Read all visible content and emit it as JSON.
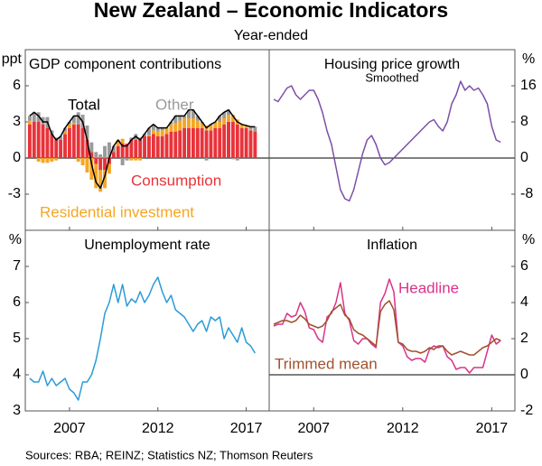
{
  "title": "New Zealand – Economic Indicators",
  "subtitle": "Year-ended",
  "source": "Sources: RBA; REINZ; Statistics NZ; Thomson Reuters",
  "chart_data": [
    {
      "type": "bar",
      "stacked": true,
      "title": "GDP component contributions",
      "ylabel": "ppt",
      "yaxis_side": "left",
      "zero_line": true,
      "xlim": [
        2004.5,
        2018.3
      ],
      "xticks": [
        2007,
        2012,
        2017
      ],
      "ylim": [
        -6,
        9
      ],
      "yticks": [
        -3,
        0,
        3,
        6
      ],
      "x": [
        2004.75,
        2005,
        2005.25,
        2005.5,
        2005.75,
        2006,
        2006.25,
        2006.5,
        2006.75,
        2007,
        2007.25,
        2007.5,
        2007.75,
        2008,
        2008.25,
        2008.5,
        2008.75,
        2009,
        2009.25,
        2009.5,
        2009.75,
        2010,
        2010.25,
        2010.5,
        2010.75,
        2011,
        2011.25,
        2011.5,
        2011.75,
        2012,
        2012.25,
        2012.5,
        2012.75,
        2013,
        2013.25,
        2013.5,
        2013.75,
        2014,
        2014.25,
        2014.5,
        2014.75,
        2015,
        2015.25,
        2015.5,
        2015.75,
        2016,
        2016.25,
        2016.5,
        2016.75,
        2017,
        2017.25,
        2017.5
      ],
      "series": [
        {
          "name": "Consumption",
          "color": "#e8333a",
          "values": [
            2.8,
            3.0,
            3.0,
            2.8,
            2.5,
            2.0,
            1.5,
            1.5,
            2.0,
            2.5,
            2.8,
            2.8,
            2.5,
            1.5,
            0.5,
            -0.5,
            -1.0,
            -1.0,
            -0.5,
            0.5,
            1.0,
            1.2,
            1.2,
            1.5,
            1.5,
            1.5,
            1.8,
            1.8,
            2.0,
            1.8,
            1.8,
            2.0,
            2.2,
            2.2,
            2.3,
            2.5,
            2.5,
            2.5,
            2.5,
            2.5,
            2.3,
            2.3,
            2.5,
            2.5,
            2.8,
            3.0,
            3.0,
            2.8,
            2.5,
            2.5,
            2.3,
            2.2
          ]
        },
        {
          "name": "Residential investment",
          "color": "#f5a623",
          "values": [
            0.3,
            0.0,
            -0.3,
            -0.4,
            -0.4,
            -0.3,
            -0.2,
            0.0,
            0.2,
            0.3,
            0.1,
            -0.3,
            -0.6,
            -1.2,
            -1.8,
            -2.0,
            -1.8,
            -1.5,
            -0.8,
            0.0,
            0.5,
            0.4,
            0.0,
            -0.2,
            -0.2,
            -0.2,
            0.0,
            0.1,
            0.3,
            0.4,
            0.5,
            0.5,
            0.6,
            0.7,
            0.8,
            0.8,
            0.8,
            0.8,
            0.6,
            0.4,
            0.4,
            0.4,
            0.5,
            0.5,
            0.5,
            0.6,
            0.6,
            0.4,
            0.3,
            0.2,
            0.1,
            0.0
          ]
        },
        {
          "name": "Other",
          "color": "#9a9a9a",
          "values": [
            0.4,
            0.8,
            0.8,
            0.6,
            0.9,
            0.3,
            0.2,
            0.3,
            0.3,
            0.2,
            0.6,
            1.0,
            1.1,
            1.2,
            0.8,
            0.5,
            0.3,
            1.0,
            1.3,
            0.5,
            0.0,
            -0.6,
            -0.2,
            0.2,
            0.5,
            0.2,
            0.2,
            0.6,
            0.5,
            0.3,
            0.2,
            0.0,
            0.2,
            0.6,
            0.4,
            0.2,
            0.7,
            0.7,
            0.4,
            0.1,
            -0.2,
            0.1,
            0.0,
            0.5,
            0.5,
            0.4,
            -0.1,
            -0.2,
            0.0,
            0.0,
            0.2,
            0.4
          ]
        },
        {
          "name": "Total",
          "color": "#000000",
          "type": "line",
          "values": [
            3.5,
            3.8,
            3.5,
            3.0,
            3.0,
            2.0,
            1.5,
            1.8,
            2.5,
            3.0,
            3.5,
            3.5,
            3.0,
            1.5,
            -0.5,
            -2.0,
            -2.5,
            -1.5,
            0.0,
            1.0,
            1.5,
            1.0,
            1.0,
            1.5,
            1.8,
            1.5,
            2.0,
            2.5,
            2.8,
            2.5,
            2.5,
            2.5,
            3.0,
            3.5,
            3.5,
            3.5,
            4.0,
            4.0,
            3.5,
            3.0,
            2.5,
            2.8,
            3.0,
            3.5,
            3.8,
            4.0,
            3.5,
            3.0,
            2.8,
            2.7,
            2.6,
            2.6
          ]
        }
      ]
    },
    {
      "type": "line",
      "title": "Housing price growth",
      "subtitle": "Smoothed",
      "ylabel": "%",
      "yaxis_side": "right",
      "zero_line": true,
      "xlim": [
        2004.5,
        2018.3
      ],
      "xticks": [
        2007,
        2012,
        2017
      ],
      "ylim": [
        -16,
        24
      ],
      "yticks": [
        -8,
        0,
        8,
        16
      ],
      "x": [
        2004.75,
        2005,
        2005.25,
        2005.5,
        2005.75,
        2006,
        2006.25,
        2006.5,
        2006.75,
        2007,
        2007.25,
        2007.5,
        2007.75,
        2008,
        2008.25,
        2008.5,
        2008.75,
        2009,
        2009.25,
        2009.5,
        2009.75,
        2010,
        2010.25,
        2010.5,
        2010.75,
        2011,
        2011.25,
        2011.5,
        2011.75,
        2012,
        2012.25,
        2012.5,
        2012.75,
        2013,
        2013.25,
        2013.5,
        2013.75,
        2014,
        2014.25,
        2014.5,
        2014.75,
        2015,
        2015.25,
        2015.5,
        2015.75,
        2016,
        2016.25,
        2016.5,
        2016.75,
        2017,
        2017.25,
        2017.5
      ],
      "series": [
        {
          "color": "#7b4fa8",
          "values": [
            13,
            12.5,
            14,
            15.5,
            16,
            14,
            13,
            14,
            15,
            15,
            13,
            10,
            6,
            3,
            -2,
            -7,
            -9,
            -9.5,
            -7,
            -3,
            1,
            4,
            5,
            3,
            0,
            -1.5,
            -1,
            0,
            1,
            2,
            3,
            4,
            5,
            6,
            7,
            8,
            8.5,
            7,
            6,
            8,
            12,
            14,
            17,
            15,
            16,
            15,
            15.5,
            14,
            12,
            7,
            4,
            3.5
          ]
        }
      ]
    },
    {
      "type": "line",
      "title": "Unemployment rate",
      "ylabel": "%",
      "yaxis_side": "left",
      "zero_line": false,
      "xlim": [
        2004.5,
        2018.3
      ],
      "xticks": [
        2007,
        2012,
        2017
      ],
      "ylim": [
        3,
        8
      ],
      "yticks": [
        3,
        4,
        5,
        6,
        7
      ],
      "x": [
        2004.75,
        2005,
        2005.25,
        2005.5,
        2005.75,
        2006,
        2006.25,
        2006.5,
        2006.75,
        2007,
        2007.25,
        2007.5,
        2007.75,
        2008,
        2008.25,
        2008.5,
        2008.75,
        2009,
        2009.25,
        2009.5,
        2009.75,
        2010,
        2010.25,
        2010.5,
        2010.75,
        2011,
        2011.25,
        2011.5,
        2011.75,
        2012,
        2012.25,
        2012.5,
        2012.75,
        2013,
        2013.25,
        2013.5,
        2013.75,
        2014,
        2014.25,
        2014.5,
        2014.75,
        2015,
        2015.25,
        2015.5,
        2015.75,
        2016,
        2016.25,
        2016.5,
        2016.75,
        2017,
        2017.25,
        2017.5
      ],
      "series": [
        {
          "color": "#2a9bd8",
          "values": [
            3.9,
            3.8,
            3.8,
            4.1,
            3.7,
            3.9,
            3.7,
            3.8,
            3.9,
            3.6,
            3.5,
            3.3,
            3.8,
            3.8,
            4.0,
            4.4,
            5.0,
            5.7,
            6.0,
            6.5,
            6.0,
            6.5,
            5.9,
            6.1,
            6.0,
            6.3,
            6.0,
            6.2,
            6.5,
            6.7,
            6.3,
            6.0,
            6.2,
            5.8,
            5.7,
            5.6,
            5.4,
            5.2,
            5.4,
            5.5,
            5.2,
            5.6,
            5.5,
            5.6,
            5.0,
            5.3,
            5.1,
            4.9,
            5.3,
            4.9,
            4.8,
            4.6
          ]
        }
      ]
    },
    {
      "type": "line",
      "title": "Inflation",
      "ylabel": "%",
      "yaxis_side": "right",
      "zero_line": true,
      "xlim": [
        2004.5,
        2018.3
      ],
      "xticks": [
        2007,
        2012,
        2017
      ],
      "ylim": [
        -2,
        8
      ],
      "yticks": [
        -2,
        0,
        2,
        4,
        6
      ],
      "x": [
        2004.75,
        2005,
        2005.25,
        2005.5,
        2005.75,
        2006,
        2006.25,
        2006.5,
        2006.75,
        2007,
        2007.25,
        2007.5,
        2007.75,
        2008,
        2008.25,
        2008.5,
        2008.75,
        2009,
        2009.25,
        2009.5,
        2009.75,
        2010,
        2010.25,
        2010.5,
        2010.75,
        2011,
        2011.25,
        2011.5,
        2011.75,
        2012,
        2012.25,
        2012.5,
        2012.75,
        2013,
        2013.25,
        2013.5,
        2013.75,
        2014,
        2014.25,
        2014.5,
        2014.75,
        2015,
        2015.25,
        2015.5,
        2015.75,
        2016,
        2016.25,
        2016.5,
        2016.75,
        2017,
        2017.25,
        2017.5
      ],
      "series": [
        {
          "name": "Headline",
          "color": "#d9348a",
          "values": [
            2.7,
            2.8,
            2.8,
            3.4,
            3.2,
            3.3,
            4.0,
            3.5,
            2.6,
            2.5,
            2.0,
            1.8,
            3.2,
            3.4,
            4.0,
            5.1,
            3.4,
            3.0,
            1.9,
            1.7,
            2.0,
            2.0,
            1.7,
            1.5,
            4.0,
            4.5,
            5.3,
            4.6,
            1.8,
            1.6,
            1.0,
            0.8,
            0.9,
            0.9,
            0.7,
            1.4,
            1.6,
            1.5,
            1.6,
            1.0,
            0.8,
            0.3,
            0.4,
            0.4,
            0.1,
            0.4,
            0.4,
            0.4,
            1.3,
            2.2,
            1.7,
            1.9
          ]
        },
        {
          "name": "Trimmed mean",
          "color": "#a0522d",
          "values": [
            2.8,
            2.9,
            3.0,
            3.0,
            2.9,
            3.0,
            3.3,
            3.1,
            2.8,
            2.7,
            2.6,
            2.7,
            3.0,
            3.5,
            3.7,
            3.9,
            3.3,
            3.1,
            2.5,
            2.3,
            2.2,
            2.0,
            1.8,
            1.6,
            3.5,
            3.9,
            4.1,
            3.6,
            1.8,
            1.7,
            1.4,
            1.3,
            1.3,
            1.2,
            1.3,
            1.5,
            1.4,
            1.6,
            1.6,
            1.3,
            1.1,
            1.2,
            1.3,
            1.2,
            1.1,
            1.1,
            1.3,
            1.5,
            1.6,
            1.8,
            2.0,
            1.9
          ]
        }
      ]
    }
  ]
}
